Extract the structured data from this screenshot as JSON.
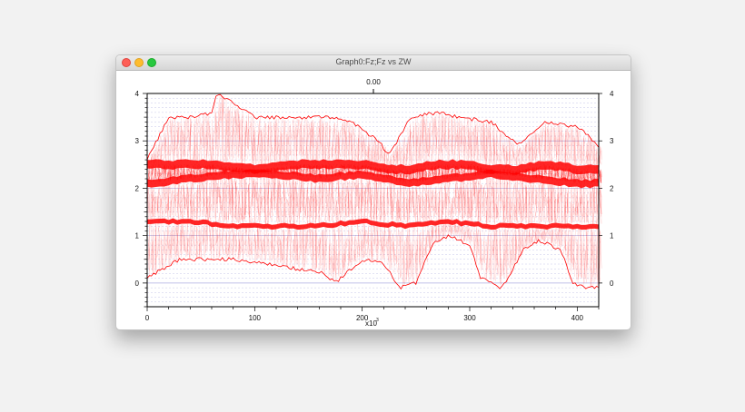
{
  "window": {
    "title": "Graph0:Fz;Fz vs ZW"
  },
  "colors": {
    "series": "#ff0000",
    "grid": "#9a9ad8",
    "axis": "#000000"
  },
  "chart_data": {
    "type": "scatter",
    "title": "",
    "xlabel": "",
    "ylabel": "",
    "x_scale_label": "x10",
    "x_scale_exponent": "3",
    "top_axis_label": "0.00",
    "xlim": [
      0,
      420
    ],
    "ylim": [
      -0.5,
      4
    ],
    "x_ticks": [
      "0",
      "100",
      "200",
      "300",
      "400"
    ],
    "y_ticks": [
      "0",
      "1",
      "2",
      "3",
      "4"
    ],
    "y_ticks_right": [
      "0",
      "1",
      "2",
      "3",
      "4"
    ],
    "grid": true,
    "legend": "none",
    "series": [
      {
        "x": [
          0,
          20,
          40,
          60,
          65,
          100,
          140,
          170,
          190,
          215,
          225,
          245,
          270,
          290,
          320,
          345,
          370,
          400,
          420
        ],
        "values": [
          2.6,
          3.5,
          3.5,
          3.6,
          4.0,
          3.5,
          3.5,
          3.5,
          3.4,
          3.0,
          2.7,
          3.5,
          3.6,
          3.5,
          3.4,
          2.9,
          3.4,
          3.3,
          2.9
        ]
      },
      {
        "x": [
          0,
          20,
          60,
          100,
          140,
          170,
          200,
          225,
          245,
          270,
          300,
          320,
          345,
          370,
          400,
          420
        ],
        "values": [
          2.5,
          2.5,
          2.5,
          2.4,
          2.5,
          2.5,
          2.5,
          2.4,
          2.4,
          2.5,
          2.5,
          2.4,
          2.4,
          2.5,
          2.4,
          2.4
        ]
      },
      {
        "x": [
          0,
          40,
          80,
          120,
          160,
          200,
          240,
          280,
          320,
          360,
          400,
          420
        ],
        "values": [
          2.1,
          2.2,
          2.3,
          2.3,
          2.2,
          2.3,
          2.1,
          2.2,
          2.3,
          2.2,
          2.1,
          2.1
        ]
      },
      {
        "x": [
          0,
          40,
          80,
          120,
          160,
          200,
          240,
          280,
          320,
          360,
          400,
          420
        ],
        "values": [
          1.3,
          1.3,
          1.2,
          1.2,
          1.2,
          1.3,
          1.2,
          1.3,
          1.2,
          1.2,
          1.2,
          1.2
        ]
      },
      {
        "x": [
          0,
          30,
          80,
          140,
          165,
          175,
          200,
          220,
          235,
          250,
          265,
          280,
          300,
          310,
          330,
          350,
          365,
          385,
          395,
          410,
          420
        ],
        "values": [
          0.1,
          0.5,
          0.5,
          0.3,
          0.2,
          0.0,
          0.5,
          0.4,
          -0.1,
          0.0,
          0.8,
          1.0,
          0.8,
          0.1,
          -0.1,
          0.7,
          0.9,
          0.7,
          0.0,
          -0.1,
          -0.1
        ]
      }
    ]
  }
}
